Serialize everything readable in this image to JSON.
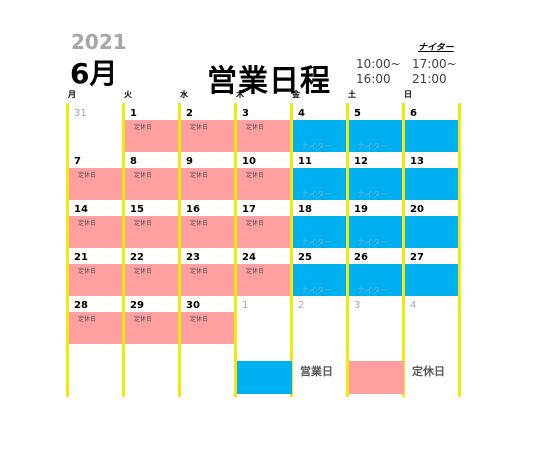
{
  "header": {
    "year": "2021",
    "month": "6月",
    "title": "営業日程",
    "normal_hours": [
      "10:00~",
      "16:00"
    ],
    "night_label": "ナイター",
    "night_hours": [
      "17:00~",
      "21:00"
    ]
  },
  "weekdays": [
    "月",
    "火",
    "水",
    "木",
    "金",
    "土",
    "日"
  ],
  "colors": {
    "closed": "#ff9f9f",
    "open": "#00b0f0",
    "divider": "#f5e80a"
  },
  "labels": {
    "closed": "定休日",
    "night": "ナイター"
  },
  "weeks": [
    [
      {
        "d": "31",
        "out": true,
        "type": "none"
      },
      {
        "d": "1",
        "type": "closed"
      },
      {
        "d": "2",
        "type": "closed"
      },
      {
        "d": "3",
        "type": "closed"
      },
      {
        "d": "4",
        "type": "night"
      },
      {
        "d": "5",
        "type": "night"
      },
      {
        "d": "6",
        "type": "open"
      }
    ],
    [
      {
        "d": "7",
        "type": "closed"
      },
      {
        "d": "8",
        "type": "closed"
      },
      {
        "d": "9",
        "type": "closed"
      },
      {
        "d": "10",
        "type": "closed"
      },
      {
        "d": "11",
        "type": "night"
      },
      {
        "d": "12",
        "type": "night"
      },
      {
        "d": "13",
        "type": "open"
      }
    ],
    [
      {
        "d": "14",
        "type": "closed"
      },
      {
        "d": "15",
        "type": "closed"
      },
      {
        "d": "16",
        "type": "closed"
      },
      {
        "d": "17",
        "type": "closed"
      },
      {
        "d": "18",
        "type": "night"
      },
      {
        "d": "19",
        "type": "night"
      },
      {
        "d": "20",
        "type": "open"
      }
    ],
    [
      {
        "d": "21",
        "type": "closed"
      },
      {
        "d": "22",
        "type": "closed"
      },
      {
        "d": "23",
        "type": "closed"
      },
      {
        "d": "24",
        "type": "closed"
      },
      {
        "d": "25",
        "type": "night"
      },
      {
        "d": "26",
        "type": "night"
      },
      {
        "d": "27",
        "type": "open"
      }
    ],
    [
      {
        "d": "28",
        "type": "closed"
      },
      {
        "d": "29",
        "type": "closed"
      },
      {
        "d": "30",
        "type": "closed"
      },
      {
        "d": "1",
        "out": true,
        "type": "none"
      },
      {
        "d": "2",
        "out": true,
        "type": "none"
      },
      {
        "d": "3",
        "out": true,
        "type": "none"
      },
      {
        "d": "4",
        "out": true,
        "type": "none"
      }
    ]
  ],
  "legend": {
    "open_label": "営業日",
    "closed_label": "定休日"
  }
}
